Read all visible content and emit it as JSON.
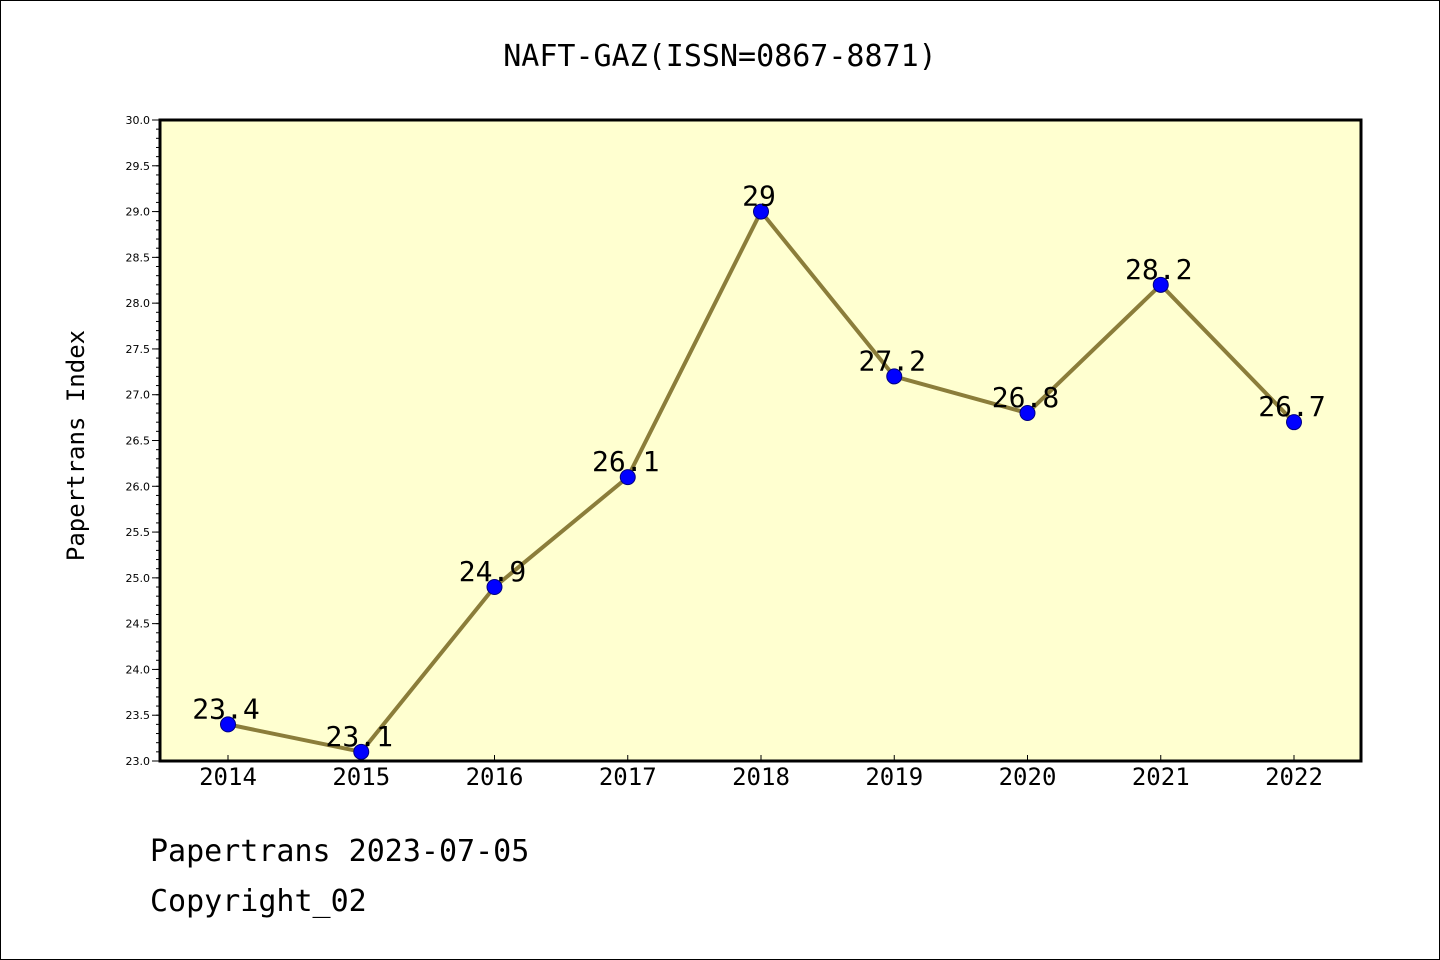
{
  "chart_data": {
    "type": "line",
    "title": "NAFT-GAZ(ISSN=0867-8871)",
    "xlabel": "",
    "ylabel": "Papertrans Index",
    "x": [
      "2014",
      "2015",
      "2016",
      "2017",
      "2018",
      "2019",
      "2020",
      "2021",
      "2022"
    ],
    "series": [
      {
        "values": [
          23.4,
          23.1,
          24.9,
          26.1,
          29,
          27.2,
          26.8,
          28.2,
          26.7
        ],
        "data_labels": [
          "23.4",
          "23.1",
          "24.9",
          "26.1",
          "29",
          "27.2",
          "26.8",
          "28.2",
          "26.7"
        ]
      }
    ],
    "ylim": [
      23.0,
      30.0
    ],
    "y_ticks": [
      "23.0",
      "23.5",
      "24.0",
      "24.5",
      "25.0",
      "25.5",
      "26.0",
      "26.5",
      "27.0",
      "27.5",
      "28.0",
      "28.5",
      "29.0",
      "29.5",
      "30.0"
    ],
    "grid": false,
    "legend": "none",
    "colors": {
      "plot_background": "#ffffd0",
      "line": "#8b7d3a",
      "marker_fill": "#0000ff",
      "marker_edge": "#000080"
    }
  },
  "footer": {
    "line1": "Papertrans 2023-07-05",
    "line2": "Copyright_02"
  }
}
